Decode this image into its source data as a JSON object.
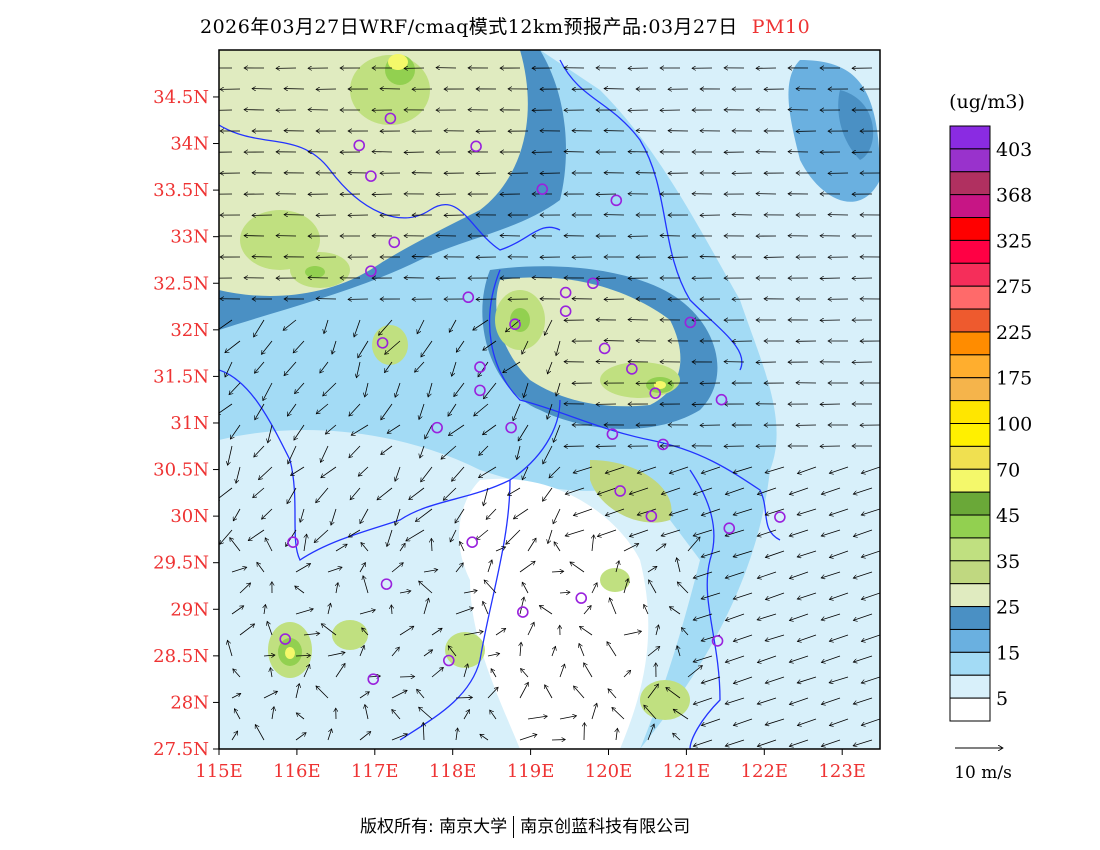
{
  "title": {
    "main": "2026年03月27日WRF/cmaq模式12km预报产品:03月27日",
    "variable": "PM10"
  },
  "map": {
    "lon_range": [
      115,
      123.5
    ],
    "lat_range": [
      27.5,
      35.0
    ],
    "lon_ticks": [
      "115E",
      "116E",
      "117E",
      "118E",
      "119E",
      "120E",
      "121E",
      "122E",
      "123E"
    ],
    "lat_ticks": [
      "27.5N",
      "28N",
      "28.5N",
      "29N",
      "29.5N",
      "30N",
      "30.5N",
      "31N",
      "31.5N",
      "32N",
      "32.5N",
      "33N",
      "33.5N",
      "34N",
      "34.5N"
    ],
    "stations": [
      [
        117.2,
        34.27
      ],
      [
        116.8,
        33.98
      ],
      [
        116.95,
        33.65
      ],
      [
        118.3,
        33.97
      ],
      [
        119.15,
        33.51
      ],
      [
        120.1,
        33.39
      ],
      [
        117.25,
        32.94
      ],
      [
        116.95,
        32.63
      ],
      [
        118.2,
        32.35
      ],
      [
        119.45,
        32.4
      ],
      [
        119.8,
        32.5
      ],
      [
        119.45,
        32.2
      ],
      [
        118.8,
        32.06
      ],
      [
        121.05,
        32.08
      ],
      [
        117.1,
        31.86
      ],
      [
        119.95,
        31.8
      ],
      [
        120.3,
        31.58
      ],
      [
        118.35,
        31.6
      ],
      [
        118.35,
        31.35
      ],
      [
        120.6,
        31.32
      ],
      [
        121.45,
        31.25
      ],
      [
        117.8,
        30.95
      ],
      [
        118.75,
        30.95
      ],
      [
        120.05,
        30.88
      ],
      [
        120.7,
        30.77
      ],
      [
        120.15,
        30.27
      ],
      [
        120.55,
        30.0
      ],
      [
        121.55,
        29.87
      ],
      [
        122.2,
        29.99
      ],
      [
        115.95,
        29.72
      ],
      [
        118.25,
        29.72
      ],
      [
        117.15,
        29.27
      ],
      [
        119.65,
        29.12
      ],
      [
        118.9,
        28.97
      ],
      [
        121.4,
        28.66
      ],
      [
        115.85,
        28.68
      ],
      [
        117.95,
        28.45
      ],
      [
        116.98,
        28.25
      ]
    ]
  },
  "colorbar": {
    "unit": "(ug/m3)",
    "colors": [
      "#8a2be2",
      "#9932cc",
      "#b03060",
      "#c71585",
      "#ff0000",
      "#ff0044",
      "#f52e5a",
      "#ff6a6a",
      "#ee5a2e",
      "#ff8c00",
      "#ffae2e",
      "#f5b44b",
      "#ffe600",
      "#fff000",
      "#f0e050",
      "#f4f86a",
      "#6aa838",
      "#92d050",
      "#c0e080",
      "#c0d880",
      "#e0ebc0",
      "#4a90c4",
      "#6ab0e0",
      "#a3dbf5",
      "#d8f0fa",
      "#ffffff"
    ],
    "labels": [
      "403",
      "368",
      "325",
      "275",
      "225",
      "175",
      "100",
      "70",
      "45",
      "35",
      "25",
      "15",
      "5"
    ]
  },
  "wind_legend": "10 m/s",
  "footer": {
    "left": "版权所有: 南京大学",
    "right": "南京创蓝科技有限公司"
  }
}
